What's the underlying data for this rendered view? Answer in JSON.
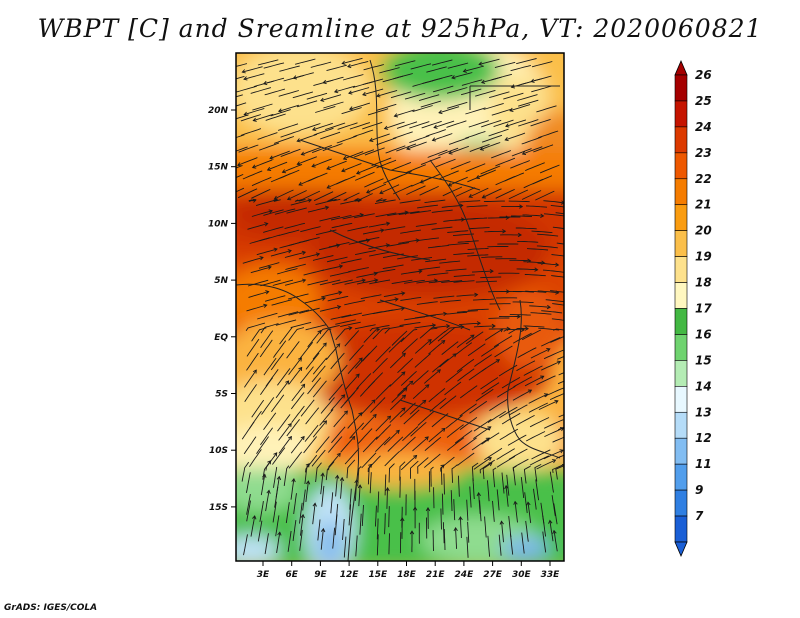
{
  "title": "WBPT [C] and Sreamline at 925hPa, VT: 2020060821",
  "footer": "GrADS: IGES/COLA",
  "lat_ticks": [
    "20N",
    "15N",
    "10N",
    "5N",
    "EQ",
    "5S",
    "10S",
    "15S"
  ],
  "lon_ticks": [
    "3E",
    "6E",
    "9E",
    "12E",
    "15E",
    "18E",
    "21E",
    "24E",
    "27E",
    "30E",
    "33E"
  ],
  "colorbar": {
    "levels": [
      "26",
      "25",
      "24",
      "23",
      "22",
      "21",
      "20",
      "19",
      "18",
      "17",
      "16",
      "15",
      "14",
      "13",
      "12",
      "11",
      "9",
      "7"
    ],
    "colors": [
      "#a50000",
      "#c51400",
      "#dc3a00",
      "#ee5800",
      "#f57c00",
      "#fa9c10",
      "#fbbf4a",
      "#fde18c",
      "#fff7c0",
      "#43b843",
      "#6fd36f",
      "#b4ecb4",
      "#e8f8ff",
      "#b5dcf8",
      "#82bdf2",
      "#529eec",
      "#2f7fe2",
      "#1a5fd6"
    ]
  },
  "fields": {
    "colors": {
      "deep_red": "#c42a00",
      "red": "#e04a00",
      "orange": "#f57c00",
      "light_orange": "#fbb340",
      "yellow": "#fde18c",
      "cream": "#fff2b8",
      "green": "#48c048",
      "light_green": "#8fdc8f",
      "light_blue": "#bfe2f6",
      "blue": "#7fb8ec"
    }
  }
}
